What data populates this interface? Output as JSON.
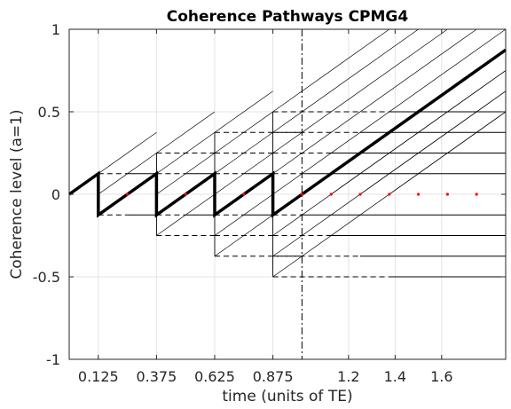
{
  "chart_data": {
    "type": "line",
    "title": "Coherence Pathways CPMG4",
    "xlabel": "time (units of TE)",
    "ylabel": "Coherence level (a=1)",
    "xlim": [
      0,
      1.875
    ],
    "ylim": [
      -1,
      1
    ],
    "grid": true,
    "legend": "none",
    "xticks": [
      0.125,
      0.375,
      0.625,
      0.875,
      1.2,
      1.4,
      1.6
    ],
    "xtick_labels": [
      "0.125",
      "0.375",
      "0.625",
      "0.875",
      "1.2",
      "1.4",
      "1.6"
    ],
    "yticks": [
      -1,
      -0.5,
      0,
      0.5,
      1
    ],
    "ytick_labels": [
      "-1",
      "-0.5",
      "0",
      "0.5",
      "1"
    ],
    "refocusing_pulse_times": [
      0.125,
      0.375,
      0.625,
      0.875
    ],
    "echo_time_marker": 1,
    "level_step": 0.125,
    "pathway_slope": 1,
    "echo_points": [
      {
        "x": 0.25,
        "y": 0
      },
      {
        "x": 0.5,
        "y": 0
      },
      {
        "x": 0.75,
        "y": 0
      },
      {
        "x": 1.0,
        "y": 0
      },
      {
        "x": 1.125,
        "y": 0
      },
      {
        "x": 1.25,
        "y": 0
      },
      {
        "x": 1.375,
        "y": 0
      },
      {
        "x": 1.5,
        "y": 0
      },
      {
        "x": 1.625,
        "y": 0
      },
      {
        "x": 1.75,
        "y": 0
      }
    ],
    "series": [
      {
        "x": [
          0,
          0.125,
          0.125,
          0.375,
          0.375,
          0.625,
          0.625,
          0.875,
          0.875,
          1.875
        ],
        "y": [
          0,
          0.125,
          -0.125,
          0.125,
          -0.125,
          0.125,
          -0.125,
          0.125,
          -0.125,
          0.875
        ]
      }
    ],
    "colors": {
      "thin_line": "#000000",
      "main_path": "#000000",
      "grid": "#e3e3e3",
      "echo_marker": "#ff0000",
      "axis": "#262626"
    }
  }
}
